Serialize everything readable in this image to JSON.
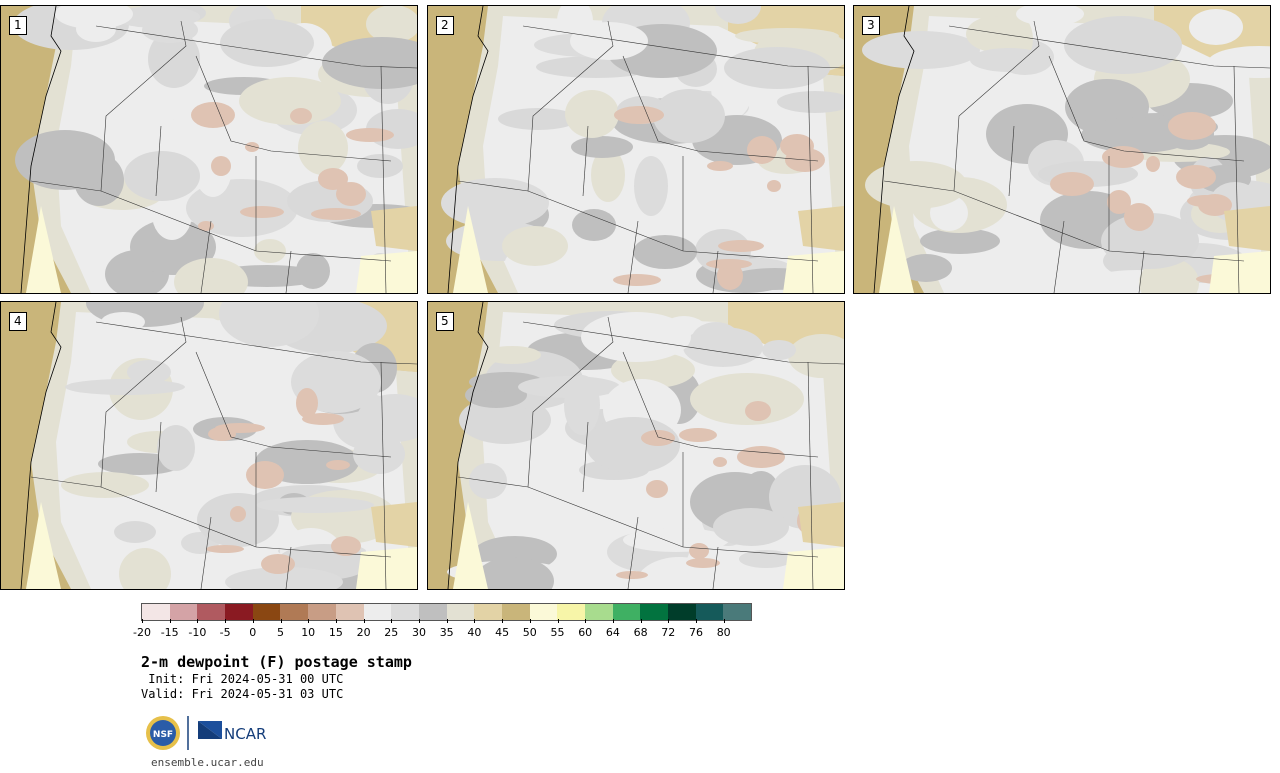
{
  "panels": [
    {
      "label": "1"
    },
    {
      "label": "2"
    },
    {
      "label": "3"
    },
    {
      "label": "4"
    },
    {
      "label": "5"
    }
  ],
  "legend": {
    "colors": [
      "#f3e6e6",
      "#d4a3a6",
      "#b05a60",
      "#8a1a22",
      "#8a4712",
      "#b07a55",
      "#c89d85",
      "#dfc3b3",
      "#ededed",
      "#dcdcdc",
      "#bfbfbf",
      "#e3e1d3",
      "#e3d3a6",
      "#c9b57a",
      "#fbf9d8",
      "#f7f5a8",
      "#a8dc8e",
      "#3fb063",
      "#02733f",
      "#003d2a",
      "#155a5a",
      "#4a7a7a"
    ],
    "ticks": [
      "-20",
      "-15",
      "-10",
      "-5",
      "0",
      "5",
      "10",
      "15",
      "20",
      "25",
      "30",
      "35",
      "40",
      "45",
      "50",
      "55",
      "60",
      "64",
      "68",
      "72",
      "76",
      "80"
    ]
  },
  "title": "2-m dewpoint (F) postage stamp",
  "init": " Init: Fri 2024-05-31 00 UTC",
  "valid": "Valid: Fri 2024-05-31 03 UTC",
  "logo_nsf": "NSF",
  "logo_ncar": "NCAR",
  "url": "ensemble.ucar.edu"
}
